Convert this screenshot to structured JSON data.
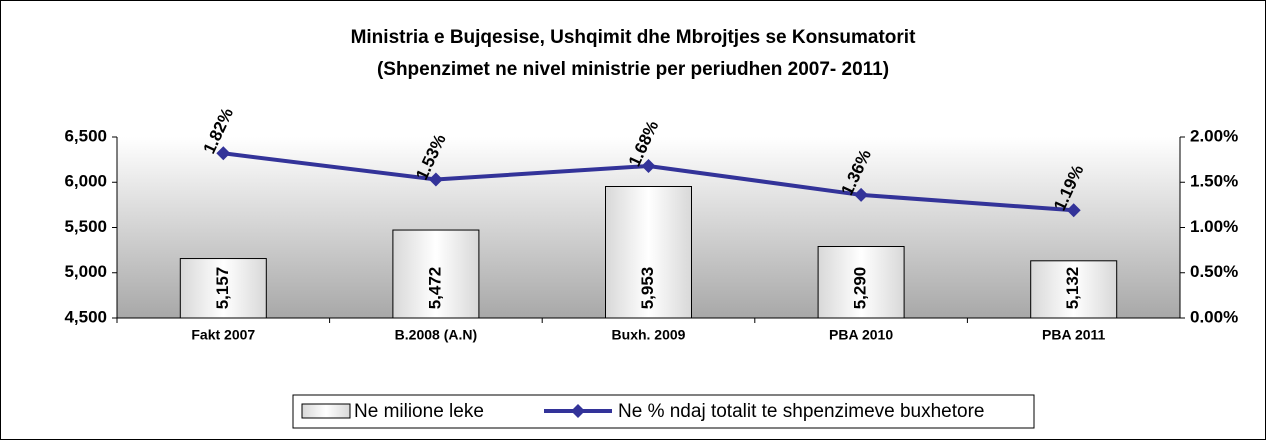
{
  "chart_data": {
    "type": "bar-line",
    "title": "Ministria e Bujqesise, Ushqimit dhe Mbrojtjes se Konsumatorit",
    "subtitle": "(Shpenzimet ne nivel ministrie per periudhen 2007- 2011)",
    "categories": [
      "Fakt 2007",
      "B.2008 (A.N)",
      "Buxh. 2009",
      "PBA 2010",
      "PBA 2011"
    ],
    "series": [
      {
        "name": "Ne milione leke",
        "color": "#f4f4f4",
        "type": "bar",
        "values": [
          5157,
          5472,
          5953,
          5290,
          5132
        ],
        "value_labels": [
          "5,157",
          "5,472",
          "5,953",
          "5,290",
          "5,132"
        ]
      },
      {
        "name": "Ne % ndaj totalit te shpenzimeve buxhetore",
        "color": "#333399",
        "type": "line",
        "axis": "y2",
        "values": [
          1.82,
          1.53,
          1.68,
          1.36,
          1.19
        ],
        "value_labels": [
          "1.82%",
          "1.53%",
          "1.68%",
          "1.36%",
          "1.19%"
        ]
      }
    ],
    "ylim": [
      4500,
      6500
    ],
    "yticks": [
      {
        "value": 4500,
        "label": "4,500"
      },
      {
        "value": 5000,
        "label": "5,000"
      },
      {
        "value": 5500,
        "label": "5,500"
      },
      {
        "value": 6000,
        "label": "6,000"
      },
      {
        "value": 6500,
        "label": "6,500"
      }
    ],
    "y2lim": [
      0,
      2
    ],
    "y2ticks": [
      {
        "value": 0,
        "label": "0.00%"
      },
      {
        "value": 0.5,
        "label": "0.50%"
      },
      {
        "value": 1,
        "label": "1.00%"
      },
      {
        "value": 1.5,
        "label": "1.50%"
      },
      {
        "value": 2,
        "label": "2.00%"
      }
    ],
    "legend": "bottom"
  }
}
